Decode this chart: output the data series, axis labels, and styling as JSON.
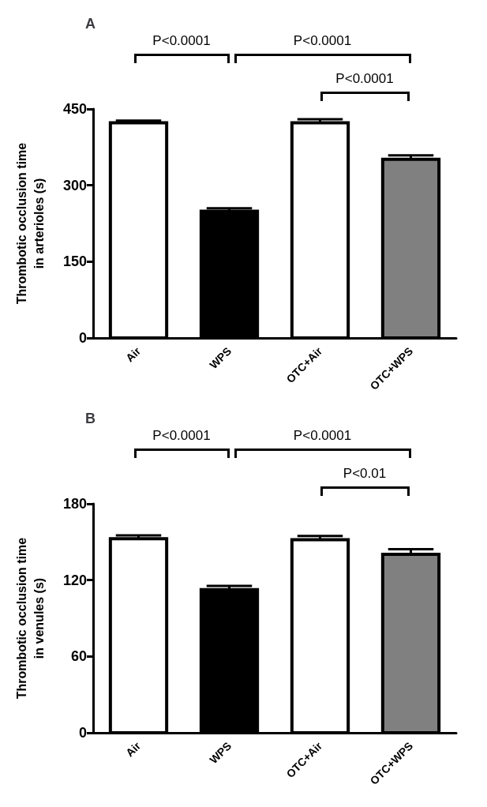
{
  "chart_data": [
    {
      "type": "bar",
      "title": "A",
      "ylabel": "Thrombotic occlusion time\nin arterioles (s)",
      "categories": [
        "Air",
        "WPS",
        "OTC+Air",
        "OTC+WPS"
      ],
      "values": [
        423,
        249,
        423,
        351
      ],
      "errors": [
        4,
        6,
        7,
        8
      ],
      "colors": [
        "#ffffff",
        "#000000",
        "#ffffff",
        "#808080"
      ],
      "ylim": [
        0,
        450
      ],
      "yticks": [
        0,
        150,
        300,
        450
      ],
      "grid": false,
      "annotations": [
        "P<0.0001",
        "P<0.0001",
        "P<0.0001"
      ]
    },
    {
      "type": "bar",
      "title": "B",
      "ylabel": "Thrombotic occlusion time\nin venules (s)",
      "categories": [
        "Air",
        "WPS",
        "OTC+Air",
        "OTC+WPS"
      ],
      "values": [
        152.6,
        112.5,
        151.7,
        140.3
      ],
      "errors": [
        2.6,
        3,
        3,
        4
      ],
      "colors": [
        "#ffffff",
        "#000000",
        "#ffffff",
        "#808080"
      ],
      "ylim": [
        0,
        180
      ],
      "yticks": [
        0,
        60,
        120,
        180
      ],
      "grid": false,
      "annotations": [
        "P<0.0001",
        "P<0.0001",
        "P<0.01"
      ]
    }
  ]
}
